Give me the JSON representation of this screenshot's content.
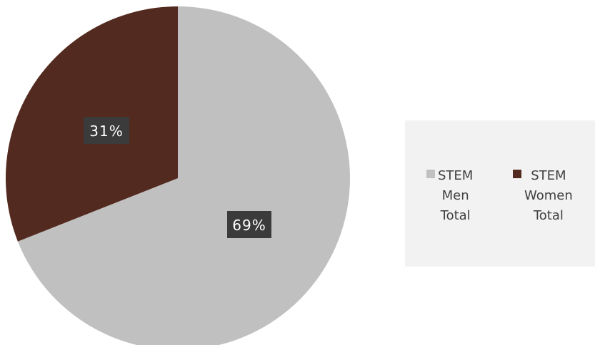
{
  "chart_data": {
    "type": "pie",
    "title": "",
    "categories": [
      "STEM Men Total",
      "STEM Women Total"
    ],
    "values": [
      69,
      31
    ],
    "value_labels": [
      "69%",
      "31%"
    ],
    "colors": [
      "#c0c0c0",
      "#532a1f"
    ],
    "legend_position": "right",
    "legend": [
      {
        "label": "STEM\nMen\nTotal",
        "color": "#c0c0c0"
      },
      {
        "label": "STEM\nWomen\nTotal",
        "color": "#532a1f"
      }
    ]
  }
}
